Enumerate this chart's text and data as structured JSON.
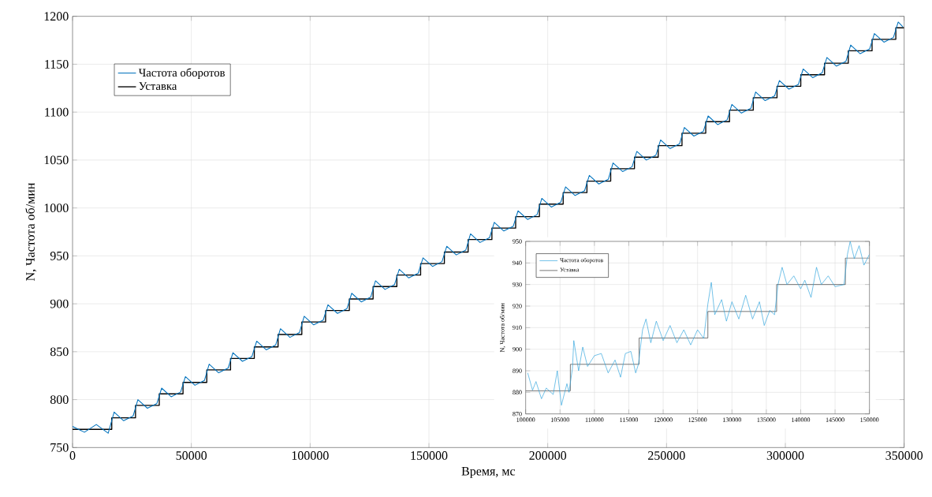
{
  "chart_data": [
    {
      "type": "line",
      "xlabel": "Время, мс",
      "ylabel": "N, Частота об/мин",
      "xlim": [
        0,
        350000
      ],
      "ylim": [
        750,
        1200
      ],
      "xticks": [
        0,
        50000,
        100000,
        150000,
        200000,
        250000,
        300000,
        350000
      ],
      "yticks": [
        750,
        800,
        850,
        900,
        950,
        1000,
        1050,
        1100,
        1150,
        1200
      ],
      "grid": true,
      "legend": "top left",
      "series": [
        {
          "name": "Частота оборотов",
          "color": "#0072bd",
          "x": [
            0,
            5000,
            10000,
            15000,
            17500,
            21500,
            25500,
            27500,
            31500,
            35500,
            37500,
            41500,
            45500,
            47500,
            51500,
            55500,
            57500,
            61500,
            65500,
            67500,
            71500,
            75500,
            77500,
            81500,
            85500,
            87500,
            91500,
            95500,
            97500,
            101500,
            105500,
            107500,
            111500,
            115500,
            117500,
            121500,
            125500,
            127500,
            131500,
            135500,
            137500,
            141500,
            145500,
            147500,
            151500,
            155500,
            157500,
            161500,
            165500,
            167500,
            171500,
            175500,
            177500,
            181500,
            185500,
            187500,
            191500,
            195500,
            197500,
            201500,
            205500,
            207500,
            211500,
            215500,
            217500,
            221500,
            225500,
            227500,
            231500,
            235500,
            237500,
            241500,
            245500,
            247500,
            251500,
            255500,
            257500,
            261500,
            265500,
            267500,
            271500,
            275500,
            277500,
            281500,
            285500,
            287500,
            291500,
            295500,
            297500,
            301500,
            305500,
            307500,
            311500,
            315500,
            317500,
            321500,
            325500,
            327500,
            331500,
            335500,
            337500,
            341500,
            345500,
            347500,
            349500
          ],
          "values": [
            772,
            766,
            774,
            765,
            787,
            778,
            783,
            800,
            791,
            796,
            812,
            803,
            808,
            824,
            815,
            820,
            837,
            828,
            833,
            849,
            840,
            845,
            861,
            852,
            857,
            874,
            865,
            870,
            887,
            878,
            883,
            899,
            890,
            895,
            911,
            902,
            907,
            924,
            915,
            920,
            936,
            927,
            932,
            948,
            939,
            944,
            960,
            951,
            956,
            973,
            964,
            969,
            985,
            976,
            981,
            997,
            988,
            993,
            1010,
            1001,
            1006,
            1022,
            1013,
            1018,
            1034,
            1025,
            1030,
            1047,
            1038,
            1043,
            1059,
            1050,
            1055,
            1071,
            1062,
            1067,
            1084,
            1075,
            1080,
            1096,
            1087,
            1092,
            1108,
            1099,
            1104,
            1121,
            1112,
            1117,
            1133,
            1124,
            1129,
            1145,
            1136,
            1141,
            1157,
            1148,
            1153,
            1170,
            1161,
            1166,
            1182,
            1173,
            1178,
            1194,
            1189
          ]
        },
        {
          "name": "Уставка",
          "type": "step",
          "color": "#000000",
          "x": [
            0,
            16500,
            26500,
            36500,
            46500,
            56500,
            66500,
            76500,
            86500,
            96500,
            106500,
            116500,
            126500,
            136500,
            146500,
            156500,
            166500,
            176500,
            186500,
            196500,
            206500,
            216500,
            226500,
            236500,
            246500,
            256500,
            266500,
            276500,
            286500,
            296500,
            306500,
            316500,
            326500,
            336500,
            346500,
            350000
          ],
          "values": [
            769,
            781,
            794,
            806,
            818,
            831,
            843,
            855,
            868,
            881,
            893,
            905,
            918,
            930,
            942,
            954,
            967,
            979,
            991,
            1004,
            1016,
            1028,
            1041,
            1053,
            1065,
            1078,
            1090,
            1102,
            1115,
            1127,
            1139,
            1151,
            1164,
            1176,
            1188,
            1188
          ]
        }
      ]
    },
    {
      "type": "line",
      "ylabel": "N, Частота об/мин",
      "xlim": [
        100000,
        150000
      ],
      "ylim": [
        870,
        950
      ],
      "xticks": [
        100000,
        105000,
        110000,
        115000,
        120000,
        125000,
        130000,
        135000,
        140000,
        145000,
        150000
      ],
      "yticks": [
        870,
        880,
        890,
        900,
        910,
        920,
        930,
        940,
        950
      ],
      "grid": true,
      "legend": "top left",
      "series": [
        {
          "name": "Частота оборотов",
          "color": "#2ea3dc",
          "x": [
            100300,
            101000,
            101500,
            102300,
            103000,
            104000,
            104600,
            105200,
            106000,
            106300,
            106800,
            107000,
            107700,
            108300,
            109000,
            110000,
            111000,
            112000,
            113000,
            113800,
            114500,
            115300,
            116000,
            116400,
            117000,
            117500,
            118200,
            119000,
            120000,
            121000,
            122000,
            123000,
            124000,
            125000,
            125900,
            126500,
            127000,
            127500,
            128500,
            129200,
            130000,
            131000,
            132000,
            133000,
            134000,
            134700,
            135500,
            136200,
            136700,
            137300,
            138000,
            139000,
            140000,
            140600,
            141500,
            142300,
            143000,
            144000,
            145000,
            146300,
            146800,
            147200,
            147800,
            148500,
            149200,
            150000
          ],
          "values": [
            889,
            881,
            885,
            877,
            882,
            879,
            890,
            874,
            884,
            880,
            891,
            904,
            890,
            901,
            892,
            897,
            898,
            889,
            895,
            887,
            898,
            899,
            889,
            893,
            909,
            914,
            903,
            913,
            904,
            911,
            903,
            909,
            902,
            909,
            905,
            921,
            931,
            916,
            923,
            913,
            922,
            914,
            925,
            914,
            922,
            911,
            918,
            916,
            930,
            938,
            930,
            934,
            928,
            932,
            924,
            938,
            930,
            934,
            929,
            930,
            944,
            950,
            942,
            948,
            939,
            944
          ]
        },
        {
          "name": "Уставка",
          "type": "step",
          "color": "#333333",
          "x": [
            100000,
            106500,
            116500,
            126500,
            136500,
            146500,
            150000
          ],
          "values": [
            880.7,
            893,
            905.2,
            917.5,
            930,
            942.3,
            942.3
          ]
        }
      ]
    }
  ]
}
